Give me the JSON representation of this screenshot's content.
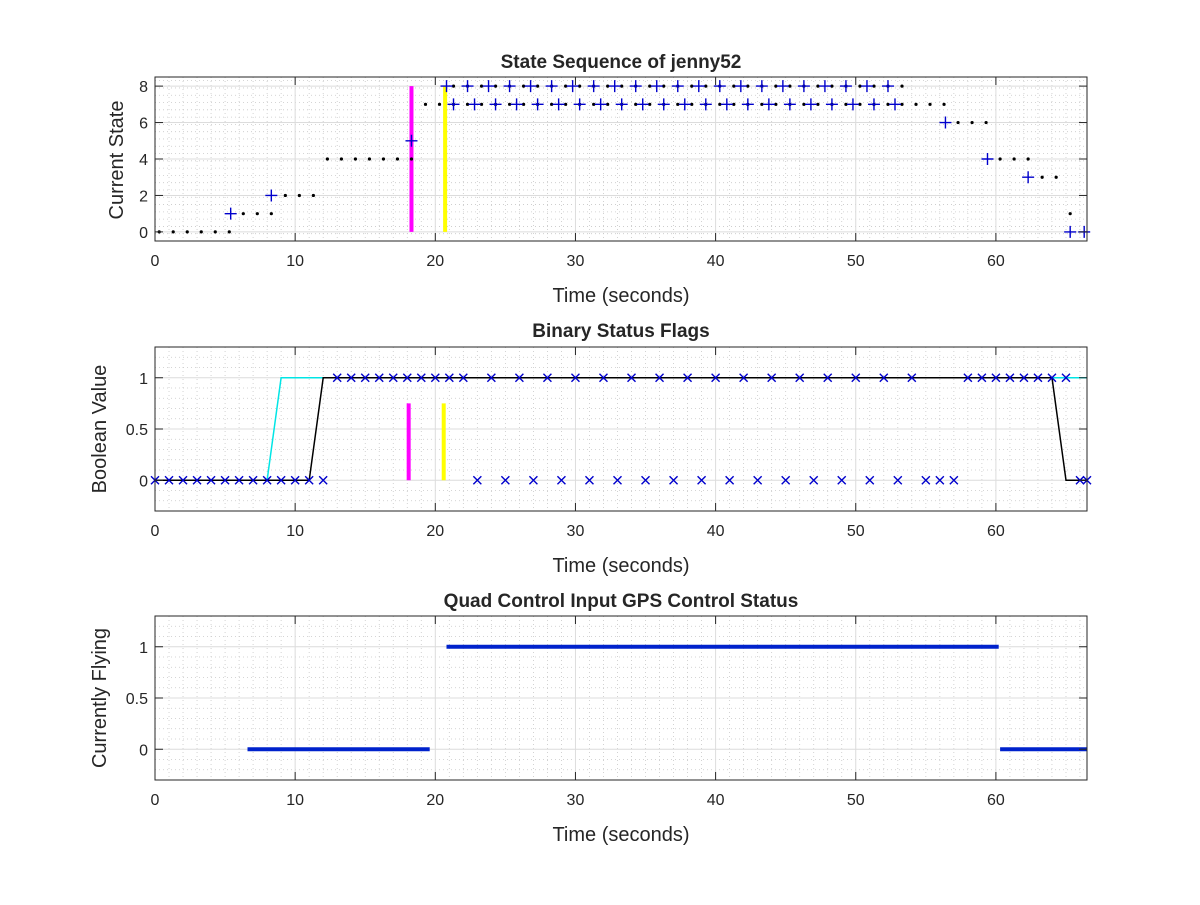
{
  "figure": {
    "background": "#ffffff"
  },
  "chart_data": [
    {
      "type": "scatter",
      "title": "State Sequence of jenny52",
      "xlabel": "Time (seconds)",
      "ylabel": "Current State",
      "xlim": [
        0,
        66.5
      ],
      "ylim": [
        -0.5,
        8.5
      ],
      "xticks": [
        0,
        10,
        20,
        30,
        40,
        50,
        60
      ],
      "yticks": [
        0,
        2,
        4,
        6,
        8
      ],
      "grid": true,
      "minor_grid": true,
      "series": [
        {
          "marker": "dot",
          "color": "#000000",
          "points": [
            [
              0.3,
              0
            ],
            [
              1.3,
              0
            ],
            [
              2.3,
              0
            ],
            [
              3.3,
              0
            ],
            [
              4.3,
              0
            ],
            [
              5.3,
              0
            ],
            [
              6.3,
              1
            ],
            [
              7.3,
              1
            ],
            [
              8.3,
              1
            ],
            [
              9.3,
              2
            ],
            [
              10.3,
              2
            ],
            [
              11.3,
              2
            ],
            [
              12.3,
              4
            ],
            [
              13.3,
              4
            ],
            [
              14.3,
              4
            ],
            [
              15.3,
              4
            ],
            [
              16.3,
              4
            ],
            [
              17.3,
              4
            ],
            [
              18.3,
              4
            ],
            [
              19.3,
              7
            ],
            [
              20.3,
              7
            ],
            [
              21.3,
              7
            ],
            [
              22.3,
              7
            ],
            [
              23.3,
              7
            ],
            [
              24.3,
              7
            ],
            [
              25.3,
              7
            ],
            [
              26.3,
              7
            ],
            [
              27.3,
              7
            ],
            [
              28.3,
              7
            ],
            [
              29.3,
              7
            ],
            [
              30.3,
              7
            ],
            [
              31.3,
              7
            ],
            [
              32.3,
              7
            ],
            [
              33.3,
              7
            ],
            [
              34.3,
              7
            ],
            [
              35.3,
              7
            ],
            [
              36.3,
              7
            ],
            [
              37.3,
              7
            ],
            [
              38.3,
              7
            ],
            [
              39.3,
              7
            ],
            [
              40.3,
              7
            ],
            [
              41.3,
              7
            ],
            [
              42.3,
              7
            ],
            [
              43.3,
              7
            ],
            [
              44.3,
              7
            ],
            [
              45.3,
              7
            ],
            [
              46.3,
              7
            ],
            [
              47.3,
              7
            ],
            [
              48.3,
              7
            ],
            [
              49.3,
              7
            ],
            [
              50.3,
              7
            ],
            [
              51.3,
              7
            ],
            [
              52.3,
              7
            ],
            [
              53.3,
              7
            ],
            [
              54.3,
              7
            ],
            [
              55.3,
              7
            ],
            [
              56.3,
              7
            ],
            [
              21.3,
              8
            ],
            [
              22.3,
              8
            ],
            [
              23.3,
              8
            ],
            [
              24.3,
              8
            ],
            [
              25.3,
              8
            ],
            [
              26.3,
              8
            ],
            [
              27.3,
              8
            ],
            [
              28.3,
              8
            ],
            [
              29.3,
              8
            ],
            [
              30.3,
              8
            ],
            [
              31.3,
              8
            ],
            [
              32.3,
              8
            ],
            [
              33.3,
              8
            ],
            [
              34.3,
              8
            ],
            [
              35.3,
              8
            ],
            [
              36.3,
              8
            ],
            [
              37.3,
              8
            ],
            [
              38.3,
              8
            ],
            [
              39.3,
              8
            ],
            [
              40.3,
              8
            ],
            [
              41.3,
              8
            ],
            [
              42.3,
              8
            ],
            [
              43.3,
              8
            ],
            [
              44.3,
              8
            ],
            [
              45.3,
              8
            ],
            [
              46.3,
              8
            ],
            [
              47.3,
              8
            ],
            [
              48.3,
              8
            ],
            [
              49.3,
              8
            ],
            [
              50.3,
              8
            ],
            [
              51.3,
              8
            ],
            [
              52.3,
              8
            ],
            [
              53.3,
              8
            ],
            [
              57.3,
              6
            ],
            [
              58.3,
              6
            ],
            [
              59.3,
              6
            ],
            [
              60.3,
              4
            ],
            [
              61.3,
              4
            ],
            [
              62.3,
              4
            ],
            [
              63.3,
              3
            ],
            [
              64.3,
              3
            ],
            [
              65.3,
              1
            ]
          ]
        },
        {
          "marker": "plus",
          "color": "#0000cc",
          "points": [
            [
              5.4,
              1
            ],
            [
              8.3,
              2
            ],
            [
              18.3,
              5
            ],
            [
              20.8,
              8
            ],
            [
              22.3,
              8
            ],
            [
              23.8,
              8
            ],
            [
              25.3,
              8
            ],
            [
              26.8,
              8
            ],
            [
              28.3,
              8
            ],
            [
              29.8,
              8
            ],
            [
              31.3,
              8
            ],
            [
              32.8,
              8
            ],
            [
              34.3,
              8
            ],
            [
              35.8,
              8
            ],
            [
              37.3,
              8
            ],
            [
              38.8,
              8
            ],
            [
              40.3,
              8
            ],
            [
              41.8,
              8
            ],
            [
              43.3,
              8
            ],
            [
              44.8,
              8
            ],
            [
              46.3,
              8
            ],
            [
              47.8,
              8
            ],
            [
              49.3,
              8
            ],
            [
              50.8,
              8
            ],
            [
              52.3,
              8
            ],
            [
              21.3,
              7
            ],
            [
              22.8,
              7
            ],
            [
              24.3,
              7
            ],
            [
              25.8,
              7
            ],
            [
              27.3,
              7
            ],
            [
              28.8,
              7
            ],
            [
              30.3,
              7
            ],
            [
              31.8,
              7
            ],
            [
              33.3,
              7
            ],
            [
              34.8,
              7
            ],
            [
              36.3,
              7
            ],
            [
              37.8,
              7
            ],
            [
              39.3,
              7
            ],
            [
              40.8,
              7
            ],
            [
              42.3,
              7
            ],
            [
              43.8,
              7
            ],
            [
              45.3,
              7
            ],
            [
              46.8,
              7
            ],
            [
              48.3,
              7
            ],
            [
              49.8,
              7
            ],
            [
              51.3,
              7
            ],
            [
              52.8,
              7
            ],
            [
              56.4,
              6
            ],
            [
              59.4,
              4
            ],
            [
              62.3,
              3
            ],
            [
              65.3,
              0
            ],
            [
              66.3,
              0
            ]
          ]
        }
      ],
      "vlines": [
        {
          "x": 18.3,
          "y": [
            0,
            8
          ],
          "color": "#ff00ff"
        },
        {
          "x": 20.7,
          "y": [
            0,
            8
          ],
          "color": "#ffff00"
        }
      ]
    },
    {
      "type": "line",
      "title": "Binary Status Flags",
      "xlabel": "Time (seconds)",
      "ylabel": "Boolean Value",
      "xlim": [
        0,
        66.5
      ],
      "ylim": [
        -0.3,
        1.3
      ],
      "xticks": [
        0,
        10,
        20,
        30,
        40,
        50,
        60
      ],
      "yticks": [
        0,
        0.5,
        1
      ],
      "ytick_labels": [
        "0",
        "0.5",
        "1"
      ],
      "grid": true,
      "minor_grid": true,
      "series": [
        {
          "marker": "line",
          "color": "#00e5e5",
          "points": [
            [
              0,
              0
            ],
            [
              8,
              0
            ],
            [
              9,
              1
            ],
            [
              66.5,
              1
            ]
          ]
        },
        {
          "marker": "line",
          "color": "#000000",
          "points": [
            [
              0,
              0
            ],
            [
              11,
              0
            ],
            [
              12,
              1
            ],
            [
              64,
              1
            ],
            [
              65,
              0
            ],
            [
              66.5,
              0
            ]
          ]
        },
        {
          "marker": "cross",
          "color": "#0000cc",
          "points": [
            [
              0,
              0
            ],
            [
              1,
              0
            ],
            [
              2,
              0
            ],
            [
              3,
              0
            ],
            [
              4,
              0
            ],
            [
              5,
              0
            ],
            [
              6,
              0
            ],
            [
              7,
              0
            ],
            [
              8,
              0
            ],
            [
              9,
              0
            ],
            [
              10,
              0
            ],
            [
              11,
              0
            ],
            [
              12,
              0
            ],
            [
              13,
              1
            ],
            [
              14,
              1
            ],
            [
              15,
              1
            ],
            [
              16,
              1
            ],
            [
              17,
              1
            ],
            [
              18,
              1
            ],
            [
              19,
              1
            ],
            [
              20,
              1
            ],
            [
              21,
              1
            ],
            [
              22,
              1
            ],
            [
              24,
              1
            ],
            [
              26,
              1
            ],
            [
              28,
              1
            ],
            [
              30,
              1
            ],
            [
              32,
              1
            ],
            [
              34,
              1
            ],
            [
              36,
              1
            ],
            [
              38,
              1
            ],
            [
              40,
              1
            ],
            [
              42,
              1
            ],
            [
              44,
              1
            ],
            [
              46,
              1
            ],
            [
              48,
              1
            ],
            [
              50,
              1
            ],
            [
              52,
              1
            ],
            [
              54,
              1
            ],
            [
              23,
              0
            ],
            [
              25,
              0
            ],
            [
              27,
              0
            ],
            [
              29,
              0
            ],
            [
              31,
              0
            ],
            [
              33,
              0
            ],
            [
              35,
              0
            ],
            [
              37,
              0
            ],
            [
              39,
              0
            ],
            [
              41,
              0
            ],
            [
              43,
              0
            ],
            [
              45,
              0
            ],
            [
              47,
              0
            ],
            [
              49,
              0
            ],
            [
              51,
              0
            ],
            [
              53,
              0
            ],
            [
              55,
              0
            ],
            [
              56,
              0
            ],
            [
              57,
              0
            ],
            [
              58,
              1
            ],
            [
              59,
              1
            ],
            [
              60,
              1
            ],
            [
              61,
              1
            ],
            [
              62,
              1
            ],
            [
              63,
              1
            ],
            [
              64,
              1
            ],
            [
              65,
              1
            ],
            [
              66,
              0
            ],
            [
              66.5,
              0
            ]
          ]
        }
      ],
      "vlines": [
        {
          "x": 18.1,
          "y": [
            0,
            0.75
          ],
          "color": "#ff00ff"
        },
        {
          "x": 20.6,
          "y": [
            0,
            0.75
          ],
          "color": "#ffff00"
        }
      ]
    },
    {
      "type": "line",
      "title": "Quad Control Input GPS Control Status",
      "xlabel": "Time (seconds)",
      "ylabel": "Currently Flying",
      "xlim": [
        0,
        66.5
      ],
      "ylim": [
        -0.3,
        1.3
      ],
      "xticks": [
        0,
        10,
        20,
        30,
        40,
        50,
        60
      ],
      "yticks": [
        0,
        0.5,
        1
      ],
      "ytick_labels": [
        "0",
        "0.5",
        "1"
      ],
      "grid": true,
      "minor_grid": true,
      "series": [
        {
          "marker": "thick",
          "color": "#0022cc",
          "points": [
            [
              6.6,
              0
            ],
            [
              19.6,
              0
            ]
          ]
        },
        {
          "marker": "thick",
          "color": "#0022cc",
          "points": [
            [
              20.8,
              1
            ],
            [
              60.2,
              1
            ]
          ]
        },
        {
          "marker": "thick",
          "color": "#0022cc",
          "points": [
            [
              60.3,
              0
            ],
            [
              66.5,
              0
            ]
          ]
        }
      ],
      "vlines": []
    }
  ]
}
